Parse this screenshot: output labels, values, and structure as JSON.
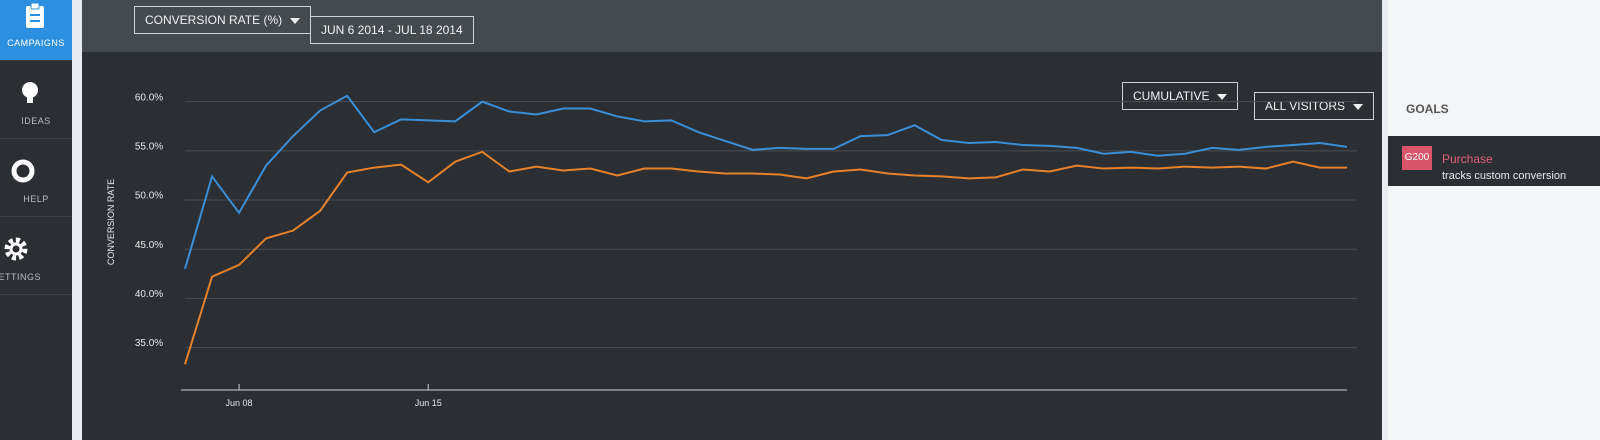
{
  "nav": [
    "CAMPAIGNS",
    "IDEAS",
    "HELP",
    "SETTINGS"
  ],
  "toolbar": {
    "metric": "CONVERSION RATE (%)",
    "dates": "JUN 6 2014 - JUL 18 2014",
    "mode": "CUMULATIVE",
    "segment": "ALL VISITORS"
  },
  "goals": {
    "title": "GOALS",
    "items": [
      {
        "id": "G200",
        "name": "Purchase",
        "description": "tracks custom conversion"
      }
    ]
  },
  "chart_data": {
    "type": "line",
    "y_label": "CONVERSION RATE",
    "categories": [
      null,
      null,
      "Jun 08",
      null,
      null,
      null,
      null,
      null,
      null,
      "Jun 15",
      null,
      null,
      null,
      null,
      null,
      null,
      null,
      null,
      null,
      null,
      null,
      null,
      null,
      null,
      null,
      null,
      null,
      null,
      null,
      null,
      null,
      null,
      null,
      null,
      null,
      null,
      null,
      null,
      null,
      null,
      null,
      null,
      null,
      null
    ],
    "series": [
      {
        "color": "#3a8fd9",
        "values": [
          43.0,
          52.4,
          48.7,
          53.5,
          56.5,
          59.1,
          60.6,
          56.9,
          58.2,
          58.1,
          58.0,
          60.0,
          59.0,
          58.7,
          59.3,
          59.3,
          58.5,
          58.0,
          58.1,
          56.9,
          56.0,
          55.1,
          55.3,
          55.2,
          55.2,
          56.5,
          56.6,
          57.6,
          56.1,
          55.8,
          55.9,
          55.6,
          55.5,
          55.3,
          54.7,
          54.9,
          54.5,
          54.7,
          55.3,
          55.1,
          55.4,
          55.6,
          55.8,
          55.4
        ]
      },
      {
        "color": "#e8822a",
        "values": [
          33.3,
          42.2,
          43.4,
          46.1,
          46.9,
          48.9,
          52.8,
          53.3,
          53.6,
          51.8,
          53.9,
          54.9,
          52.9,
          53.4,
          53.0,
          53.2,
          52.5,
          53.2,
          53.2,
          52.9,
          52.7,
          52.7,
          52.6,
          52.2,
          52.9,
          53.1,
          52.7,
          52.5,
          52.4,
          52.2,
          52.3,
          53.1,
          52.9,
          53.5,
          53.2,
          53.3,
          53.2,
          53.4,
          53.3,
          53.4,
          53.2,
          53.9,
          53.3,
          53.3
        ]
      }
    ],
    "ylim": [
      31.5,
      62
    ],
    "yticks": [
      {
        "value": 35,
        "label": "35.0%"
      },
      {
        "value": 40,
        "label": "40.0%"
      },
      {
        "value": 45,
        "label": "45.0%"
      },
      {
        "value": 50,
        "label": "50.0%"
      },
      {
        "value": 55,
        "label": "55.0%"
      },
      {
        "value": 60,
        "label": "60.0%"
      }
    ],
    "grid": true
  }
}
